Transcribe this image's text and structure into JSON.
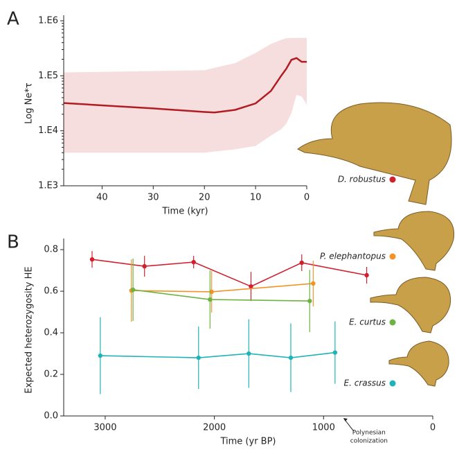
{
  "chart_data": [
    {
      "type": "band_line",
      "panel": "A",
      "ylabel": "Log Ne*τ",
      "xlabel": "Time (kyr)",
      "ylog": true,
      "xlim": [
        47.5,
        0
      ],
      "ylim": [
        1000,
        1000000
      ],
      "xticks": [
        40,
        30,
        20,
        10,
        0
      ],
      "yticks": [
        {
          "value": 1000,
          "label": "1.E3"
        },
        {
          "value": 10000,
          "label": "1.E4"
        },
        {
          "value": 100000,
          "label": "1.E5"
        },
        {
          "value": 1000000,
          "label": "1.E6"
        }
      ],
      "line_color": "#b01c22",
      "band_color": "#f6dede",
      "x": [
        47.5,
        40,
        30,
        20,
        18,
        14,
        10,
        7,
        5,
        4,
        3,
        2,
        1,
        0
      ],
      "median": [
        32000,
        29000,
        25500,
        22000,
        21500,
        24000,
        31500,
        53000,
        100000,
        134000,
        195000,
        210000,
        180000,
        180000
      ],
      "upper": [
        115000,
        118000,
        122000,
        126000,
        140000,
        170000,
        260000,
        380000,
        450000,
        480000,
        490000,
        490000,
        490000,
        490000
      ],
      "lower": [
        4000,
        4000,
        4000,
        4000,
        4200,
        4600,
        5300,
        8200,
        10700,
        13500,
        21000,
        45000,
        42000,
        30000
      ]
    },
    {
      "type": "errorbar_line",
      "panel": "B",
      "ylabel": "Expected heterozygosity HE",
      "xlabel": "Time (yr BP)",
      "xlim": [
        3380,
        0
      ],
      "ylim": [
        0,
        0.827
      ],
      "xticks": [
        3000,
        2000,
        1000,
        0
      ],
      "yticks": [
        {
          "value": 0,
          "label": "0.0"
        },
        0.2,
        0.4,
        0.6,
        0.8
      ],
      "annotation": {
        "lines": [
          "Polynesian",
          "colonization"
        ],
        "x": 800
      },
      "series": [
        {
          "name": "D. robustus",
          "color": "#d0202e",
          "x": [
            3120,
            2640,
            2190,
            1665,
            1200,
            605
          ],
          "values": [
            0.753,
            0.72,
            0.74,
            0.623,
            0.737,
            0.677
          ],
          "errors": [
            0.04,
            0.05,
            0.03,
            0.07,
            0.04,
            0.04
          ]
        },
        {
          "name": "P. elephantopus",
          "color": "#f39325",
          "x": [
            2760,
            2025,
            1095
          ],
          "values": [
            0.603,
            0.597,
            0.637
          ],
          "errors": [
            0.15,
            0.1,
            0.11
          ]
        },
        {
          "name": "E. curtus",
          "color": "#6db33f",
          "x": [
            2745,
            2040,
            1127
          ],
          "values": [
            0.607,
            0.56,
            0.553
          ],
          "errors": [
            0.15,
            0.14,
            0.15
          ]
        },
        {
          "name": "E. crassus",
          "color": "#1fb3b8",
          "x": [
            3045,
            2145,
            1685,
            1300,
            895
          ],
          "values": [
            0.29,
            0.28,
            0.3,
            0.28,
            0.305
          ],
          "errors": [
            0.185,
            0.15,
            0.165,
            0.165,
            0.15
          ]
        }
      ]
    }
  ]
}
